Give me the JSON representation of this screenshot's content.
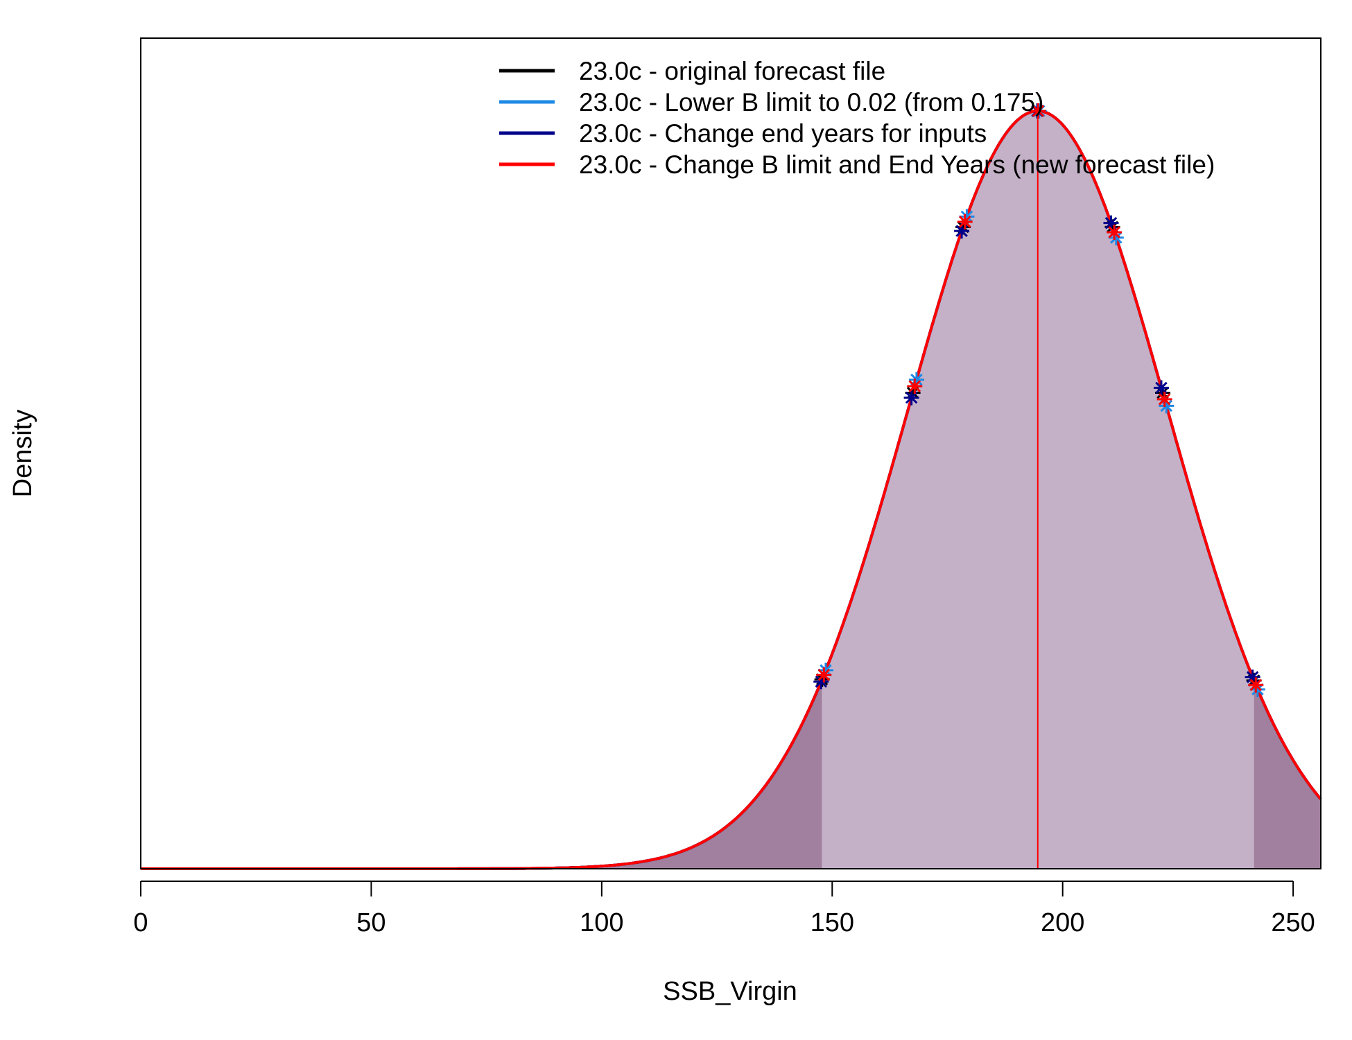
{
  "chart_data": {
    "type": "area",
    "xlabel": "SSB_Virgin",
    "ylabel": "Density",
    "xlim": [
      0,
      256
    ],
    "x_ticks": [
      0,
      50,
      100,
      150,
      200,
      250
    ],
    "x_tick_labels": [
      "0",
      "50",
      "100",
      "150",
      "200",
      "250"
    ],
    "y_ticks_shown": false,
    "distribution": {
      "shape": "normal",
      "mean": 194.6,
      "sd": 28.1,
      "ci_lower": 147.8,
      "ci_upper": 241.5
    },
    "vertical_line_x": 194.6,
    "fill_colors": {
      "inner": "#c4b1c7",
      "tails": "#a17f9e"
    },
    "legend_position": "top-right",
    "series": [
      {
        "name": "23.0c - original forecast file",
        "color": "#000000",
        "marker_color": "#000000",
        "marker_x": [
          147.8,
          167.5,
          178.4,
          194.6,
          210.8,
          221.7,
          241.5
        ]
      },
      {
        "name": "23.0c - Lower B limit to 0.02 (from 0.175)",
        "color": "#1e88e5",
        "marker_color": "#1e88e5",
        "marker_x": [
          148.6,
          168.3,
          179.2,
          194.9,
          211.6,
          222.5,
          242.3
        ]
      },
      {
        "name": "23.0c - Change end years for inputs",
        "color": "#00008b",
        "marker_color": "#00008b",
        "marker_x": [
          147.6,
          167.2,
          178.1,
          194.5,
          210.5,
          221.4,
          241.2
        ]
      },
      {
        "name": "23.0c - Change B limit and End Years (new forecast file)",
        "color": "#ff0000",
        "marker_color": "#ff0000",
        "marker_x": [
          148.2,
          167.9,
          178.8,
          194.7,
          211.2,
          222.1,
          241.9
        ]
      }
    ]
  }
}
